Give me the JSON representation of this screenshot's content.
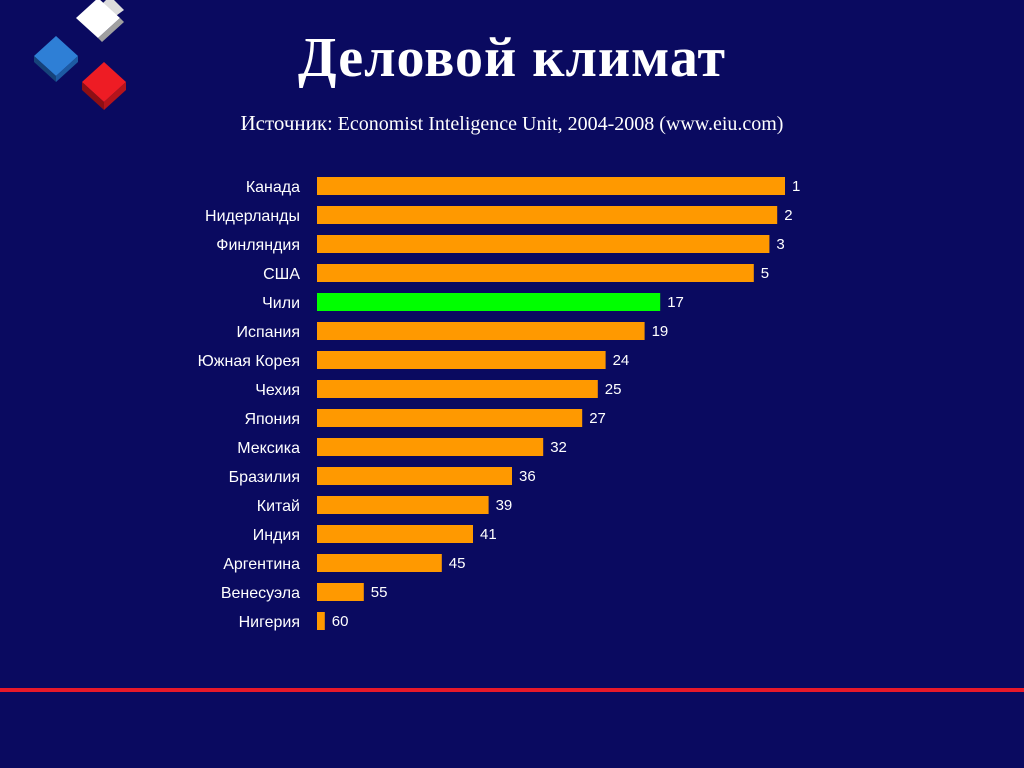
{
  "title": "Деловой климат",
  "source": {
    "label": "Источник",
    "text": ": Economist Inteligence Unit, 2004-2008  (www.eiu.com)"
  },
  "colors": {
    "background": "#0a0a60",
    "bar": "#ff9900",
    "highlight_bar": "#00ff00",
    "divider": "#e8192a"
  },
  "chart_data": {
    "type": "bar",
    "orientation": "horizontal",
    "title": "",
    "xlabel": "",
    "ylabel": "",
    "categories": [
      "Канада",
      "Нидерланды",
      "Финляндия",
      "США",
      "Чили",
      "Испания",
      "Южная Корея",
      "Чехия",
      "Япония",
      "Мексика",
      "Бразилия",
      "Китай",
      "Индия",
      "Аргентина",
      "Венесуэла",
      "Нигерия"
    ],
    "values": [
      1,
      2,
      3,
      5,
      17,
      19,
      24,
      25,
      27,
      32,
      36,
      39,
      41,
      45,
      55,
      60
    ],
    "highlight": "Чили",
    "grid": false,
    "legend": "none"
  }
}
